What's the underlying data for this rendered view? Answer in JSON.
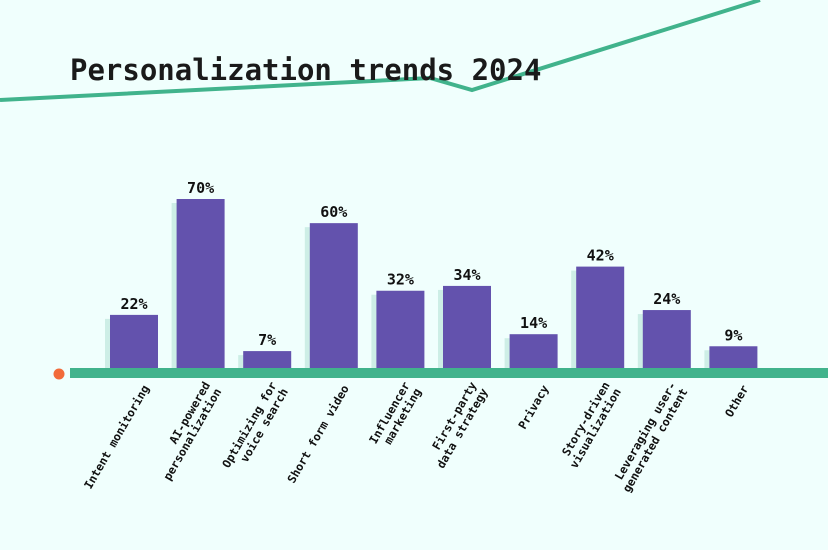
{
  "chart_data": {
    "type": "bar",
    "title": "Personalization trends 2024",
    "xlabel": "",
    "ylabel": "",
    "ylim": [
      0,
      75
    ],
    "grid": false,
    "categories": [
      [
        "Intent monitoring"
      ],
      [
        "AI-powered",
        "personalization"
      ],
      [
        "Optimizing for",
        "voice search"
      ],
      [
        "Short form video"
      ],
      [
        "Influencer",
        "marketing"
      ],
      [
        "First-party",
        "data strategy"
      ],
      [
        "Privacy"
      ],
      [
        "Story-driven",
        "visualization"
      ],
      [
        "Leveraging user-",
        "generated content"
      ],
      [
        "Other"
      ]
    ],
    "values": [
      22,
      70,
      7,
      60,
      32,
      34,
      14,
      42,
      24,
      9
    ],
    "value_labels": [
      "22%",
      "70%",
      "7%",
      "60%",
      "32%",
      "34%",
      "14%",
      "42%",
      "24%",
      "9%"
    ],
    "colors": {
      "bar": "#6352ad",
      "bar_shadow": "#cdeee6",
      "axis": "#41b38c",
      "dot": "#f26b3a",
      "line": "#41b38c",
      "background": "#f0fffd"
    }
  }
}
